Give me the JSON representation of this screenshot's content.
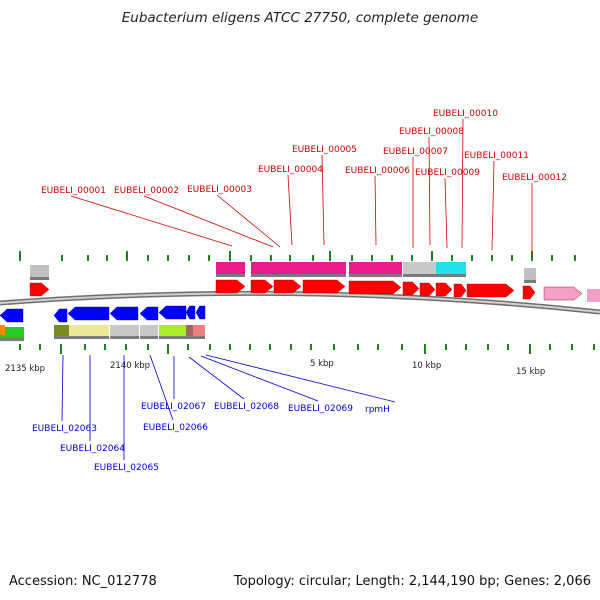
{
  "title": "Eubacterium eligens ATCC 27750, complete genome",
  "footer": {
    "accession": "Accession: NC_012778",
    "summary": "Topology: circular; Length: 2,144,190 bp; Genes: 2,066"
  },
  "colors": {
    "forward_label": "#cc0000",
    "reverse_label": "#0000cc",
    "forward_arrow": "#ff0000",
    "reverse_arrow": "#0000ff",
    "tick": "#208020",
    "backbone": "#909090"
  },
  "scale_labels": [
    "2135 kbp",
    "2140 kbp",
    "5 kbp",
    "10 kbp",
    "15 kbp"
  ],
  "forward_genes": [
    "EUBELI_00001",
    "EUBELI_00002",
    "EUBELI_00003",
    "EUBELI_00004",
    "EUBELI_00005",
    "EUBELI_00006",
    "EUBELI_00007",
    "EUBELI_00008",
    "EUBELI_00009",
    "EUBELI_00010",
    "EUBELI_00011",
    "EUBELI_00012"
  ],
  "reverse_genes": [
    "EUBELI_02063",
    "EUBELI_02064",
    "EUBELI_02065",
    "EUBELI_02066",
    "EUBELI_02067",
    "EUBELI_02068",
    "EUBELI_02069",
    "rpmH"
  ]
}
